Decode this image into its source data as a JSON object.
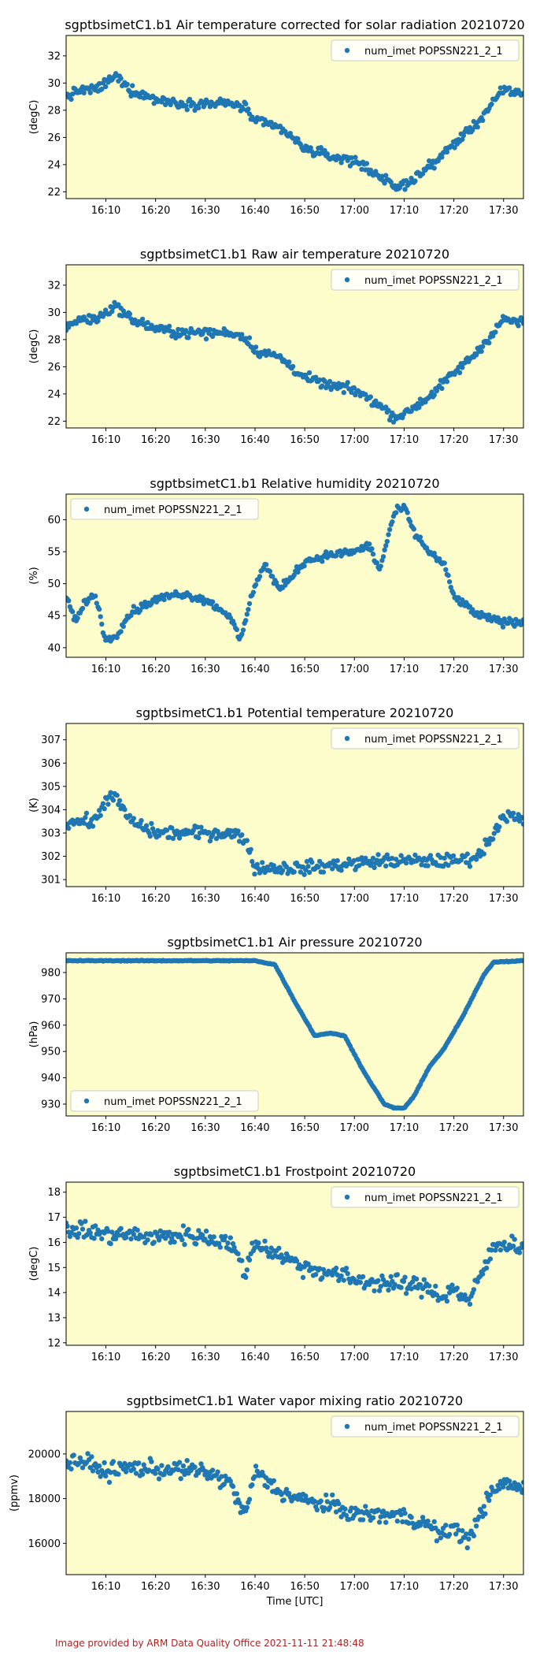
{
  "footer": "Image provided by ARM Data Quality Office 2021-11-11 21:48:48",
  "colors": {
    "series": "#1f77b4",
    "plot_background": "#fdfdcc",
    "footer_text": "#b22222"
  },
  "chart_data": [
    {
      "type": "scatter",
      "title": "sgptbsimetC1.b1 Air temperature corrected for solar radiation 20210720",
      "ylabel": "(degC)",
      "xlabel": "",
      "xlim": [
        "16:02",
        "17:34"
      ],
      "ylim": [
        21.5,
        33.5
      ],
      "xticks": [
        "16:10",
        "16:20",
        "16:30",
        "16:40",
        "16:50",
        "17:00",
        "17:10",
        "17:20",
        "17:30"
      ],
      "yticks": [
        22,
        24,
        26,
        28,
        30,
        32
      ],
      "legend": {
        "label": "num_imet POPSSN221_2_1",
        "loc": "upper right"
      },
      "grid": false,
      "series": [
        {
          "name": "num_imet POPSSN221_2_1",
          "noise": 0.7,
          "x": [
            "16:02",
            "16:05",
            "16:08",
            "16:10",
            "16:12",
            "16:15",
            "16:20",
            "16:25",
            "16:30",
            "16:35",
            "16:38",
            "16:40",
            "16:45",
            "16:48",
            "16:50",
            "16:55",
            "17:00",
            "17:05",
            "17:08",
            "17:10",
            "17:15",
            "17:20",
            "17:25",
            "17:30",
            "17:34"
          ],
          "y": [
            29,
            29.5,
            29.5,
            30,
            30.5,
            29.5,
            28.8,
            28.5,
            28.5,
            28.5,
            28.2,
            27.2,
            26.7,
            25.8,
            25.2,
            24.6,
            24.3,
            23.2,
            22.3,
            22.5,
            23.8,
            25.5,
            27.2,
            29.5,
            29.2
          ]
        }
      ]
    },
    {
      "type": "scatter",
      "title": "sgptbsimetC1.b1 Raw air temperature 20210720",
      "ylabel": "(degC)",
      "xlabel": "",
      "xlim": [
        "16:02",
        "17:34"
      ],
      "ylim": [
        21.5,
        33.5
      ],
      "xticks": [
        "16:10",
        "16:20",
        "16:30",
        "16:40",
        "16:50",
        "17:00",
        "17:10",
        "17:20",
        "17:30"
      ],
      "yticks": [
        22,
        24,
        26,
        28,
        30,
        32
      ],
      "legend": {
        "label": "num_imet POPSSN221_2_1",
        "loc": "upper right"
      },
      "grid": false,
      "series": [
        {
          "name": "num_imet POPSSN221_2_1",
          "noise": 0.7,
          "x": [
            "16:02",
            "16:05",
            "16:08",
            "16:10",
            "16:12",
            "16:15",
            "16:20",
            "16:25",
            "16:30",
            "16:35",
            "16:38",
            "16:40",
            "16:45",
            "16:48",
            "16:50",
            "16:55",
            "17:00",
            "17:05",
            "17:08",
            "17:10",
            "17:15",
            "17:20",
            "17:25",
            "17:30",
            "17:34"
          ],
          "y": [
            29,
            29.5,
            29.5,
            30,
            30.5,
            29.5,
            28.8,
            28.5,
            28.5,
            28.5,
            28.2,
            27.2,
            26.7,
            25.8,
            25.2,
            24.6,
            24.3,
            23.2,
            22.3,
            22.5,
            23.8,
            25.5,
            27.2,
            29.5,
            29.2
          ]
        }
      ]
    },
    {
      "type": "scatter",
      "title": "sgptbsimetC1.b1 Relative humidity 20210720",
      "ylabel": "(%)",
      "xlabel": "",
      "xlim": [
        "16:02",
        "17:34"
      ],
      "ylim": [
        38.5,
        64
      ],
      "xticks": [
        "16:10",
        "16:20",
        "16:30",
        "16:40",
        "16:50",
        "17:00",
        "17:10",
        "17:20",
        "17:30"
      ],
      "yticks": [
        40,
        45,
        50,
        55,
        60
      ],
      "legend": {
        "label": "num_imet POPSSN221_2_1",
        "loc": "upper left"
      },
      "grid": false,
      "series": [
        {
          "name": "num_imet POPSSN221_2_1",
          "noise": 1.2,
          "x": [
            "16:02",
            "16:04",
            "16:06",
            "16:08",
            "16:10",
            "16:12",
            "16:15",
            "16:20",
            "16:25",
            "16:30",
            "16:35",
            "16:37",
            "16:40",
            "16:42",
            "16:45",
            "16:50",
            "16:55",
            "17:00",
            "17:03",
            "17:05",
            "17:08",
            "17:10",
            "17:12",
            "17:15",
            "17:18",
            "17:20",
            "17:25",
            "17:30",
            "17:34"
          ],
          "y": [
            48,
            44,
            47.5,
            48,
            41,
            42,
            45.5,
            47.5,
            48.5,
            47.5,
            45,
            41,
            50,
            53,
            49,
            53.5,
            54.5,
            55,
            56,
            52,
            61,
            62,
            58,
            55,
            53,
            48,
            45,
            44,
            44
          ]
        }
      ]
    },
    {
      "type": "scatter",
      "title": "sgptbsimetC1.b1 Potential temperature 20210720",
      "ylabel": "(K)",
      "xlabel": "",
      "xlim": [
        "16:02",
        "17:34"
      ],
      "ylim": [
        300.7,
        307.7
      ],
      "xticks": [
        "16:10",
        "16:20",
        "16:30",
        "16:40",
        "16:50",
        "17:00",
        "17:10",
        "17:20",
        "17:30"
      ],
      "yticks": [
        301,
        302,
        303,
        304,
        305,
        306,
        307
      ],
      "legend": {
        "label": "num_imet POPSSN221_2_1",
        "loc": "upper right"
      },
      "grid": false,
      "series": [
        {
          "name": "num_imet POPSSN221_2_1",
          "noise": 0.55,
          "x": [
            "16:02",
            "16:05",
            "16:08",
            "16:10",
            "16:12",
            "16:15",
            "16:20",
            "16:25",
            "16:30",
            "16:35",
            "16:38",
            "16:40",
            "16:45",
            "16:50",
            "16:55",
            "17:00",
            "17:05",
            "17:10",
            "17:15",
            "17:20",
            "17:25",
            "17:28",
            "17:30",
            "17:34"
          ],
          "y": [
            303.5,
            303.5,
            303.5,
            304.5,
            304.5,
            303.5,
            303,
            303,
            303,
            303,
            302.8,
            301.5,
            301.5,
            301.5,
            301.6,
            301.7,
            301.8,
            301.8,
            301.8,
            301.8,
            302,
            303,
            303.8,
            303.5
          ]
        }
      ]
    },
    {
      "type": "scatter",
      "title": "sgptbsimetC1.b1 Air pressure 20210720",
      "ylabel": "(hPa)",
      "xlabel": "",
      "xlim": [
        "16:02",
        "17:34"
      ],
      "ylim": [
        925.5,
        987.5
      ],
      "xticks": [
        "16:10",
        "16:20",
        "16:30",
        "16:40",
        "16:50",
        "17:00",
        "17:10",
        "17:20",
        "17:30"
      ],
      "yticks": [
        930,
        940,
        950,
        960,
        970,
        980
      ],
      "legend": {
        "label": "num_imet POPSSN221_2_1",
        "loc": "lower left"
      },
      "grid": false,
      "series": [
        {
          "name": "num_imet POPSSN221_2_1",
          "noise": 0.3,
          "x": [
            "16:02",
            "16:20",
            "16:40",
            "16:44",
            "16:48",
            "16:52",
            "16:55",
            "16:58",
            "17:02",
            "17:06",
            "17:08",
            "17:10",
            "17:12",
            "17:15",
            "17:18",
            "17:22",
            "17:26",
            "17:28",
            "17:34"
          ],
          "y": [
            984.5,
            984.5,
            984.5,
            983,
            969,
            956,
            957,
            956,
            942,
            930,
            928.5,
            928.5,
            933,
            944,
            951,
            964,
            979,
            984,
            984.5
          ]
        }
      ]
    },
    {
      "type": "scatter",
      "title": "sgptbsimetC1.b1 Frostpoint 20210720",
      "ylabel": "(degC)",
      "xlabel": "",
      "xlim": [
        "16:02",
        "17:34"
      ],
      "ylim": [
        11.9,
        18.4
      ],
      "xticks": [
        "16:10",
        "16:20",
        "16:30",
        "16:40",
        "16:50",
        "17:00",
        "17:10",
        "17:20",
        "17:30"
      ],
      "yticks": [
        12,
        13,
        14,
        15,
        16,
        17,
        18
      ],
      "legend": {
        "label": "num_imet POPSSN221_2_1",
        "loc": "upper right"
      },
      "grid": false,
      "series": [
        {
          "name": "num_imet POPSSN221_2_1",
          "noise": 0.7,
          "x": [
            "16:02",
            "16:05",
            "16:10",
            "16:15",
            "16:20",
            "16:25",
            "16:30",
            "16:35",
            "16:38",
            "16:40",
            "16:45",
            "16:50",
            "16:55",
            "17:00",
            "17:05",
            "17:10",
            "17:15",
            "17:18",
            "17:20",
            "17:23",
            "17:25",
            "17:28",
            "17:30",
            "17:34"
          ],
          "y": [
            16.5,
            16.5,
            16.3,
            16.3,
            16.2,
            16.3,
            16.2,
            16,
            14.8,
            16,
            15.5,
            15,
            14.8,
            14.5,
            14.4,
            14.3,
            14.2,
            13.8,
            14.2,
            13.6,
            14.5,
            15.8,
            16,
            15.8
          ]
        }
      ]
    },
    {
      "type": "scatter",
      "title": "sgptbsimetC1.b1 Water vapor mixing ratio 20210720",
      "ylabel": "(ppmv)",
      "xlabel": "Time [UTC]",
      "xlim": [
        "16:02",
        "17:34"
      ],
      "ylim": [
        14600,
        21900
      ],
      "xticks": [
        "16:10",
        "16:20",
        "16:30",
        "16:40",
        "16:50",
        "17:00",
        "17:10",
        "17:20",
        "17:30"
      ],
      "yticks": [
        16000,
        18000,
        20000
      ],
      "legend": {
        "label": "num_imet POPSSN221_2_1",
        "loc": "upper right"
      },
      "grid": false,
      "series": [
        {
          "name": "num_imet POPSSN221_2_1",
          "noise": 750,
          "x": [
            "16:02",
            "16:05",
            "16:10",
            "16:15",
            "16:20",
            "16:25",
            "16:30",
            "16:35",
            "16:38",
            "16:40",
            "16:45",
            "16:50",
            "16:55",
            "17:00",
            "17:05",
            "17:10",
            "17:15",
            "17:18",
            "17:20",
            "17:23",
            "17:25",
            "17:28",
            "17:30",
            "17:34"
          ],
          "y": [
            19600,
            19700,
            19200,
            19400,
            19300,
            19300,
            19200,
            18700,
            17200,
            19200,
            18300,
            17900,
            17700,
            17300,
            17300,
            17200,
            16800,
            16300,
            16800,
            16000,
            17300,
            18300,
            18700,
            18400
          ]
        }
      ]
    }
  ]
}
